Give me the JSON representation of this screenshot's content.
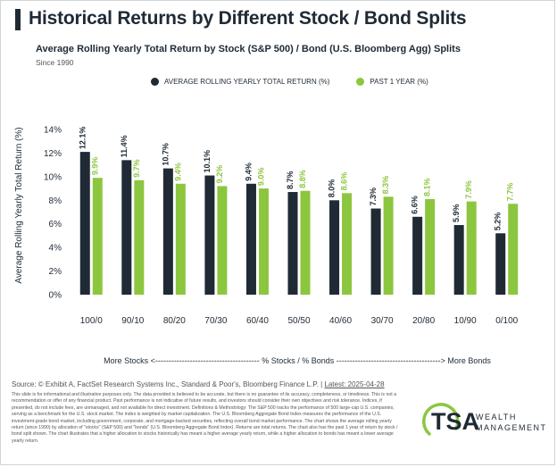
{
  "header": {
    "title": "Historical Returns by Different Stock / Bond Splits",
    "subtitle": "Average Rolling Yearly Total Return by Stock (S&P 500) / Bond (U.S. Bloomberg Agg) Splits",
    "since": "Since 1990"
  },
  "colors": {
    "navy": "#1f2a35",
    "green": "#8cc63f",
    "text": "#1f2a35"
  },
  "chart_data": {
    "type": "bar",
    "categories": [
      "100/0",
      "90/10",
      "80/20",
      "70/30",
      "60/40",
      "50/50",
      "40/60",
      "30/70",
      "20/80",
      "10/90",
      "0/100"
    ],
    "series": [
      {
        "name": "AVERAGE ROLLING YEARLY TOTAL RETURN (%)",
        "values": [
          12.1,
          11.4,
          10.7,
          10.1,
          9.4,
          8.7,
          8.0,
          7.3,
          6.6,
          5.9,
          5.2
        ],
        "labels": [
          "12.1%",
          "11.4%",
          "10.7%",
          "10.1%",
          "9.4%",
          "8.7%",
          "8.0%",
          "7.3%",
          "6.6%",
          "5.9%",
          "5.2%"
        ],
        "color": "#1f2a35"
      },
      {
        "name": "PAST 1 YEAR (%)",
        "values": [
          9.9,
          9.7,
          9.4,
          9.2,
          9.0,
          8.8,
          8.6,
          8.3,
          8.1,
          7.9,
          7.7
        ],
        "labels": [
          "9.9%",
          "9.7%",
          "9.4%",
          "9.2%",
          "9.0%",
          "8.8%",
          "8.6%",
          "8.3%",
          "8.1%",
          "7.9%",
          "7.7%"
        ],
        "color": "#8cc63f"
      }
    ],
    "ylim": [
      0,
      14
    ],
    "yticks": [
      0,
      2,
      4,
      6,
      8,
      10,
      12,
      14
    ],
    "ytick_labels": [
      "0%",
      "2%",
      "4%",
      "6%",
      "8%",
      "10%",
      "12%",
      "14%"
    ],
    "ylabel": "Average Rolling Yearly Total Return (%)",
    "xlabel": "More Stocks <--------------------------------------- % Stocks / % Bonds ---------------------------------------> More Bonds",
    "legend_position": "top",
    "grid": false
  },
  "footer": {
    "source_prefix": "Source: © Exhibit A, FactSet Research Systems Inc., Standard & Poor's, Bloomberg Finance L.P. | ",
    "latest": "Latest: 2025-04-28",
    "disclaimer": "This slide is for informational and illustrative purposes only. The data provided is believed to be accurate, but there is no guarantee of its accuracy, completeness, or timeliness. This is not a recommendation or offer of any financial product. Past performance is not indicative of future results, and investors should consider their own objectives and risk tolerance. Indices, if presented, do not include fees, are unmanaged, and not available for direct investment. Definitions & Methodology: The S&P 500 tracks the performance of 500 large-cap U.S. companies, serving as a benchmark for the U.S. stock market. The index is weighted by market capitalization. The U.S. Bloomberg Aggregate Bond Index measures the performance of the U.S. investment-grade bond market, including government, corporate, and mortgage-backed securities, reflecting overall bond market performance. The chart shows the average rolling yearly return (since 1990) by allocation of \"stocks\" (S&P 500) and \"bonds\" (U.S. Bloomberg Aggregate Bond Index). Returns are total returns. The chart also has the past 1 year of return by stock / bond split shown. The chart illustrates that a higher allocation to stocks historically has meant a higher average yearly return, while a higher allocation to bonds has meant a lower average yearly return."
  },
  "logo": {
    "name": "TSA",
    "line1": "WEALTH",
    "line2": "MANAGEMENT"
  }
}
